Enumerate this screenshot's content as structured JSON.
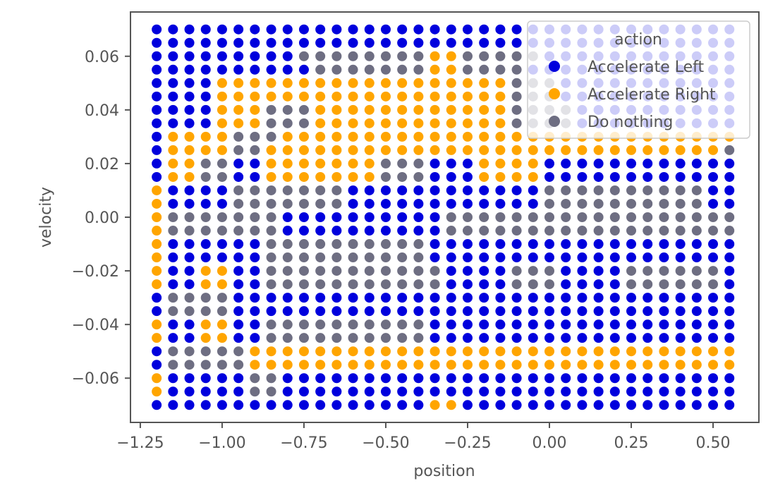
{
  "chart_data": {
    "type": "scatter",
    "title": "",
    "xlabel": "position",
    "ylabel": "velocity",
    "xlim": [
      -1.28,
      0.64
    ],
    "ylim": [
      -0.0765,
      0.0765
    ],
    "grid": false,
    "legend": {
      "title": "action",
      "placement": "top-right",
      "entries": [
        "Accelerate Left",
        "Accelerate Right",
        "Do nothing"
      ]
    },
    "colors": {
      "Accelerate Left": "#0000dd",
      "Accelerate Right": "#ffa500",
      "Do nothing": "#6e6e82"
    },
    "x_grid": [
      -1.2,
      -1.15,
      -1.1,
      -1.05,
      -1.0,
      -0.95,
      -0.9,
      -0.85,
      -0.8,
      -0.75,
      -0.7,
      -0.65,
      -0.6,
      -0.55,
      -0.5,
      -0.45,
      -0.4,
      -0.35,
      -0.3,
      -0.25,
      -0.2,
      -0.15,
      -0.1,
      -0.05,
      0.0,
      0.05,
      0.1,
      0.15,
      0.2,
      0.25,
      0.3,
      0.35,
      0.4,
      0.45,
      0.5,
      0.55
    ],
    "y_grid": [
      0.07,
      0.065,
      0.06,
      0.055,
      0.05,
      0.045,
      0.04,
      0.035,
      0.03,
      0.025,
      0.02,
      0.015,
      0.01,
      0.005,
      0.0,
      -0.005,
      -0.01,
      -0.015,
      -0.02,
      -0.025,
      -0.03,
      -0.035,
      -0.04,
      -0.045,
      -0.05,
      -0.055,
      -0.06,
      -0.065,
      -0.07
    ],
    "action_codes": {
      "0": "Accelerate Left",
      "1": "Accelerate Right",
      "2": "Do nothing"
    },
    "grid_actions": [
      "000000000000000000000000000000000000",
      "000000000000000000000000000000000000",
      "000000000222222221122222000000000000",
      "000000000022222221122220000000000000",
      "000011111111111111111122200000000000",
      "000011111111111111111122200000000000",
      "000011122211111111111122220000000000",
      "000011122211111111111122220000000000",
      "011112221111111111111111111111111111",
      "011112211111111111111111111111111112",
      "011220011111112220001111000000000000",
      "011220011111112220001111000000000000",
      "100002222222000000000000222222222200",
      "100002222222000000000000222222222200",
      "122222220000000000222222222222222222",
      "122222220000000000222222222222222222",
      "100000022222222220000000000000000000",
      "100000022222222220000000000000000000",
      "100110022222222222000022200002222220",
      "100110022222222222000022200002222220",
      "022220000000000000000000000000000000",
      "022220000000000000000000000000000000",
      "100110022222222220000000000000000000",
      "100110022222222220000000000000000000",
      "022222111111111111111111111111111111",
      "022222111111111111111111111111111111",
      "100000220000000000000000000000000000",
      "100000220000000000000000000000000000",
      "000000000000000001100000000000000000"
    ],
    "x_ticks": [
      {
        "value": -1.25,
        "label": "−1.25"
      },
      {
        "value": -1.0,
        "label": "−1.00"
      },
      {
        "value": -0.75,
        "label": "−0.75"
      },
      {
        "value": -0.5,
        "label": "−0.50"
      },
      {
        "value": -0.25,
        "label": "−0.25"
      },
      {
        "value": 0.0,
        "label": "0.00"
      },
      {
        "value": 0.25,
        "label": "0.25"
      },
      {
        "value": 0.5,
        "label": "0.50"
      }
    ],
    "y_ticks": [
      {
        "value": 0.06,
        "label": "0.06"
      },
      {
        "value": 0.04,
        "label": "0.04"
      },
      {
        "value": 0.02,
        "label": "0.02"
      },
      {
        "value": 0.0,
        "label": "0.00"
      },
      {
        "value": -0.02,
        "label": "−0.02"
      },
      {
        "value": -0.04,
        "label": "−0.04"
      },
      {
        "value": -0.06,
        "label": "−0.06"
      }
    ]
  }
}
